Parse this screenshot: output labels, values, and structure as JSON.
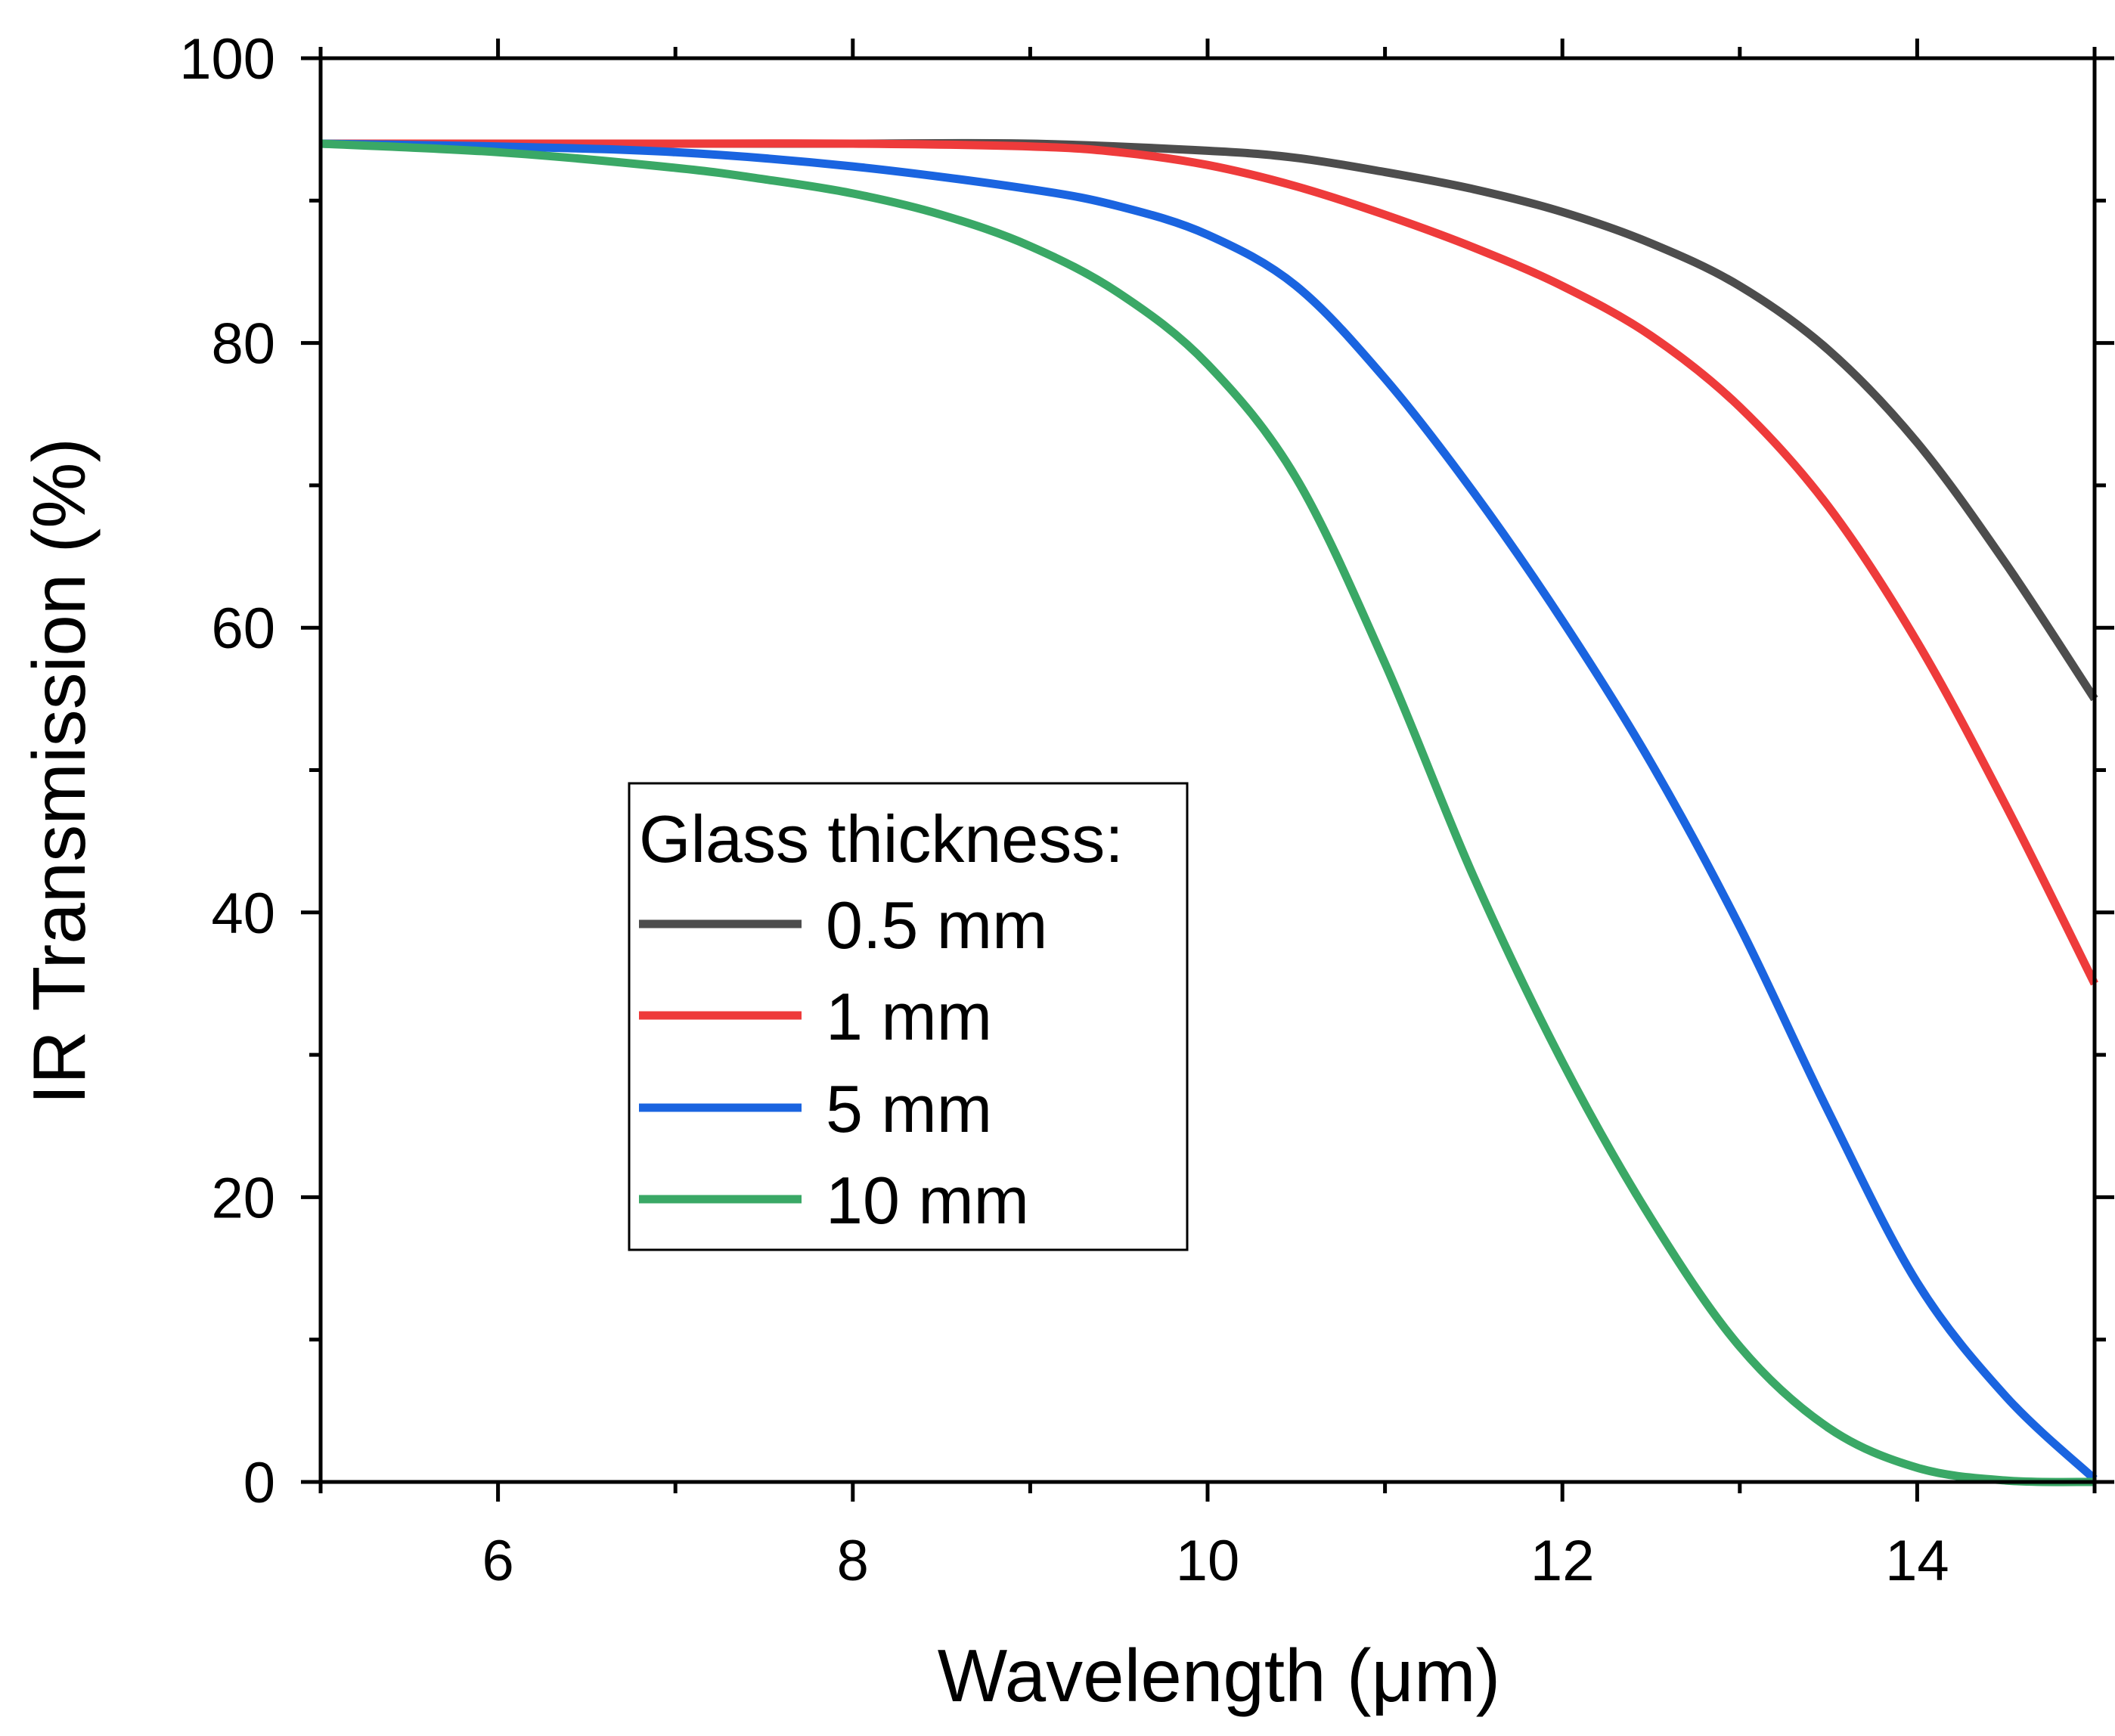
{
  "chart_data": {
    "type": "line",
    "title": "",
    "xlabel": "Wavelength (μm)",
    "ylabel": "IR Transmission (%)",
    "xlim": [
      5,
      15
    ],
    "ylim": [
      0,
      100
    ],
    "x_ticks": [
      6,
      8,
      10,
      12,
      14
    ],
    "y_ticks": [
      0,
      20,
      40,
      60,
      80,
      100
    ],
    "legend": {
      "title": "Glass thickness:",
      "position": "center-left"
    },
    "series": [
      {
        "name": "0.5 mm",
        "color": "#4d4d4d",
        "x": [
          5,
          6,
          7,
          8,
          9,
          10,
          10.5,
          11,
          11.5,
          12,
          12.5,
          13,
          13.5,
          14,
          14.5,
          15
        ],
        "y": [
          94,
          94,
          94,
          94,
          94,
          93.5,
          93,
          92,
          90.8,
          89.2,
          87,
          84,
          79.5,
          73,
          64.5,
          55
        ]
      },
      {
        "name": "1 mm",
        "color": "#ee3b3b",
        "x": [
          5,
          6,
          7,
          8,
          9,
          9.5,
          10,
          10.5,
          11,
          11.5,
          12,
          12.5,
          13,
          13.5,
          14,
          14.5,
          15
        ],
        "y": [
          94,
          94,
          94,
          94,
          93.8,
          93.4,
          92.5,
          91,
          89,
          86.7,
          84,
          80.5,
          75.5,
          68.5,
          59,
          47.5,
          35
        ]
      },
      {
        "name": "5 mm",
        "color": "#1a64e0",
        "x": [
          5,
          6,
          7,
          8,
          9,
          9.5,
          10,
          10.5,
          11,
          11.5,
          12,
          12.5,
          13,
          13.5,
          14,
          14.5,
          15
        ],
        "y": [
          94,
          93.8,
          93.4,
          92.4,
          90.8,
          89.6,
          87.6,
          84,
          77.5,
          69.5,
          60.5,
          50.5,
          39,
          26,
          14,
          6,
          0.2
        ]
      },
      {
        "name": "10 mm",
        "color": "#3aa866",
        "x": [
          5,
          6,
          7,
          7.5,
          8,
          8.5,
          9,
          9.5,
          10,
          10.5,
          11,
          11.5,
          12,
          12.5,
          13,
          13.5,
          14,
          14.5,
          15
        ],
        "y": [
          94,
          93.4,
          92.3,
          91.5,
          90.5,
          89,
          86.8,
          83.5,
          78.5,
          70.5,
          57.5,
          42.5,
          29.5,
          18.5,
          9.5,
          3.8,
          1,
          0.1,
          0
        ]
      }
    ]
  }
}
